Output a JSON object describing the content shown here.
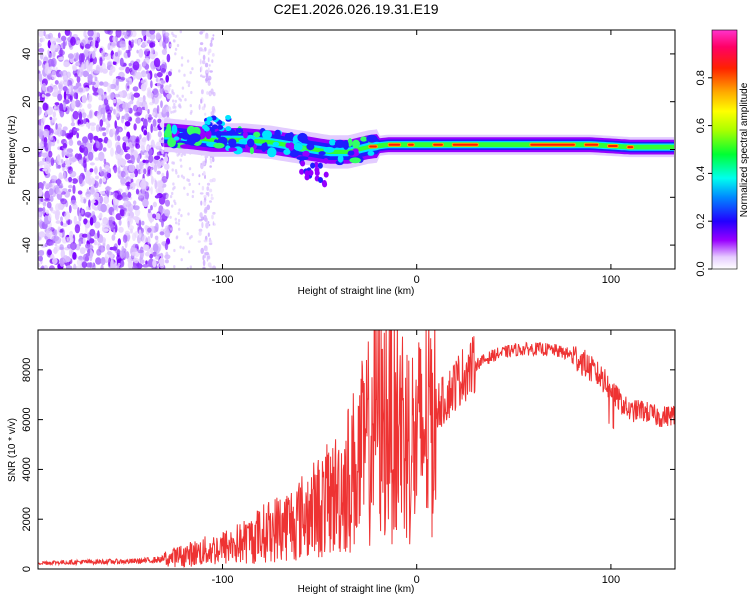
{
  "page_title": "C2E1.2026.026.19.31.E19",
  "chart_data": [
    {
      "type": "heatmap",
      "title": "C2E1.2026.026.19.31.E19",
      "xlabel": "Height of straight line (km)",
      "ylabel": "Frequency (Hz)",
      "xlim": [
        -195,
        133
      ],
      "ylim": [
        -50,
        50
      ],
      "x_ticks": [
        -100,
        0,
        100
      ],
      "x_tick_labels": [
        "-100",
        "0",
        "100"
      ],
      "y_ticks": [
        -40,
        -20,
        0,
        20,
        40
      ],
      "y_tick_labels": [
        "-40",
        "-20",
        "0",
        "20",
        "40"
      ],
      "colorbar": {
        "label": "Normalized spectral amplitude",
        "range": [
          0,
          1
        ],
        "ticks": [
          0,
          0.2,
          0.4,
          0.6,
          0.8
        ],
        "tick_labels": [
          "0.0",
          "0.2",
          "0.4",
          "0.6",
          "0.8"
        ],
        "colors": [
          "#ffffff",
          "#e6ccff",
          "#9900ff",
          "#2200ff",
          "#0088ff",
          "#00ffee",
          "#00ff33",
          "#aaff00",
          "#ffff00",
          "#ffaa00",
          "#ff2200",
          "#ff0066",
          "#ff33cc"
        ]
      },
      "ridge": [
        {
          "x": -128,
          "f": 6
        },
        {
          "x": -115,
          "f": 5
        },
        {
          "x": -105,
          "f": 4
        },
        {
          "x": -90,
          "f": 4
        },
        {
          "x": -75,
          "f": 3
        },
        {
          "x": -60,
          "f": 1
        },
        {
          "x": -45,
          "f": -1
        },
        {
          "x": -35,
          "f": -1
        },
        {
          "x": -25,
          "f": 1
        },
        {
          "x": -15,
          "f": 2
        },
        {
          "x": 0,
          "f": 2
        },
        {
          "x": 10,
          "f": 2
        },
        {
          "x": 30,
          "f": 2
        },
        {
          "x": 60,
          "f": 2
        },
        {
          "x": 90,
          "f": 2
        },
        {
          "x": 110,
          "f": 1
        },
        {
          "x": 133,
          "f": 1
        }
      ]
    },
    {
      "type": "line",
      "xlabel": "Height of straight line (km)",
      "ylabel": "SNR (10 * v/v)",
      "xlim": [
        -195,
        133
      ],
      "ylim": [
        0,
        9600
      ],
      "x_ticks": [
        -100,
        0,
        100
      ],
      "x_tick_labels": [
        "-100",
        "0",
        "100"
      ],
      "y_ticks": [
        0,
        2000,
        4000,
        6000,
        8000
      ],
      "y_tick_labels": [
        "0",
        "2000",
        "4000",
        "6000",
        "8000"
      ],
      "series": [
        {
          "name": "SNR",
          "color": "#ee3333",
          "x": [
            -195,
            -180,
            -165,
            -150,
            -140,
            -130,
            -120,
            -110,
            -100,
            -95,
            -90,
            -85,
            -80,
            -75,
            -70,
            -65,
            -60,
            -55,
            -50,
            -45,
            -40,
            -35,
            -30,
            -25,
            -22,
            -20,
            -18,
            -15,
            -10,
            -5,
            0,
            5,
            10,
            15,
            20,
            25,
            30,
            40,
            50,
            60,
            70,
            80,
            85,
            90,
            95,
            100,
            105,
            110,
            115,
            120,
            125,
            133
          ],
          "y": [
            250,
            270,
            290,
            300,
            330,
            400,
            550,
            700,
            850,
            950,
            1050,
            1200,
            1400,
            1550,
            1700,
            1850,
            2050,
            2300,
            2500,
            2800,
            3100,
            3700,
            4300,
            5000,
            6300,
            7200,
            5400,
            6700,
            6200,
            5300,
            4900,
            6000,
            6500,
            6850,
            7450,
            7900,
            8200,
            8600,
            8800,
            8850,
            8800,
            8600,
            8350,
            8000,
            7700,
            7200,
            6700,
            6300,
            6400,
            6250,
            6100,
            6200
          ]
        }
      ]
    }
  ]
}
